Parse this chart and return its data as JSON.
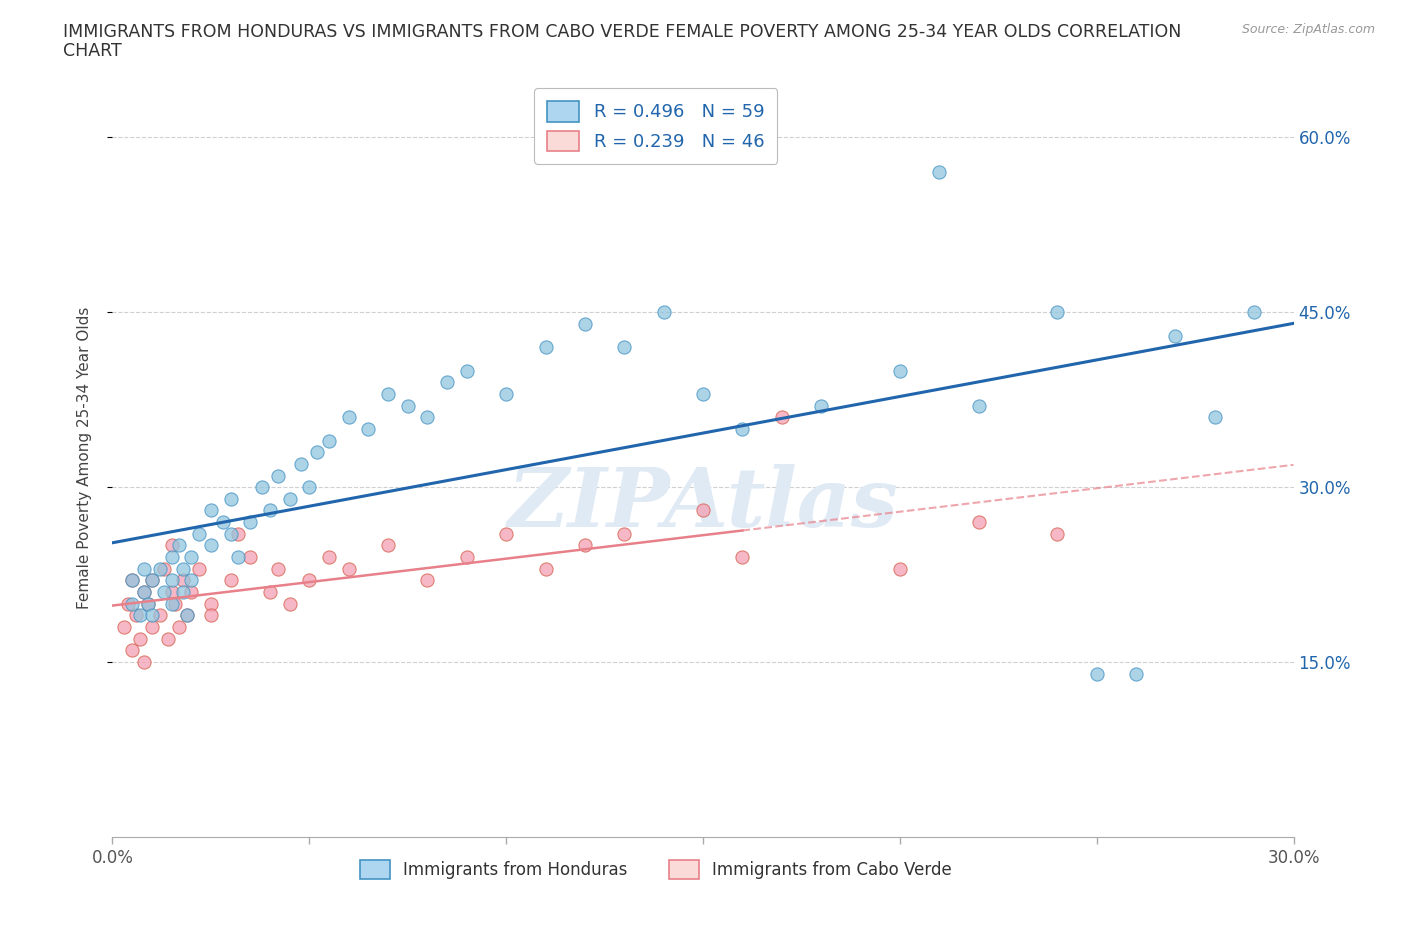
{
  "title_line1": "IMMIGRANTS FROM HONDURAS VS IMMIGRANTS FROM CABO VERDE FEMALE POVERTY AMONG 25-34 YEAR OLDS CORRELATION",
  "title_line2": "CHART",
  "source_text": "Source: ZipAtlas.com",
  "ylabel": "Female Poverty Among 25-34 Year Olds",
  "xlim": [
    0.0,
    0.3
  ],
  "ylim": [
    0.0,
    0.65
  ],
  "yticks": [
    0.15,
    0.3,
    0.45,
    0.6
  ],
  "ytick_labels": [
    "15.0%",
    "30.0%",
    "45.0%",
    "60.0%"
  ],
  "xticks": [
    0.0,
    0.1,
    0.2,
    0.3
  ],
  "xtick_labels": [
    "0.0%",
    "",
    "",
    "30.0%"
  ],
  "watermark": "ZIPAtlas",
  "series1_label": "Immigrants from Honduras",
  "series2_label": "Immigrants from Cabo Verde",
  "series1_color": "#92C5DE",
  "series2_color": "#F4A0B5",
  "series1_edge": "#4393C3",
  "series2_edge": "#D6604D",
  "trend1_color": "#2166AC",
  "trend2_color": "#E8808A",
  "trend2_dash_color": "#E8808A",
  "legend_r1": "R = 0.496   N = 59",
  "legend_r2": "R = 0.239   N = 46",
  "legend_face1": "#AED6F1",
  "legend_face2": "#FADBD8",
  "legend_edge1": "#4393C3",
  "legend_edge2": "#E8808A",
  "legend_text_color": "#2166AC",
  "background_color": "#ffffff",
  "grid_color": "#d0d0d0",
  "honduras_x": [
    0.005,
    0.005,
    0.007,
    0.008,
    0.008,
    0.009,
    0.01,
    0.01,
    0.012,
    0.013,
    0.015,
    0.015,
    0.015,
    0.017,
    0.018,
    0.018,
    0.019,
    0.02,
    0.02,
    0.022,
    0.025,
    0.025,
    0.028,
    0.03,
    0.03,
    0.032,
    0.035,
    0.038,
    0.04,
    0.042,
    0.045,
    0.048,
    0.05,
    0.052,
    0.055,
    0.06,
    0.065,
    0.07,
    0.075,
    0.08,
    0.085,
    0.09,
    0.1,
    0.11,
    0.12,
    0.13,
    0.14,
    0.15,
    0.16,
    0.18,
    0.2,
    0.21,
    0.22,
    0.24,
    0.25,
    0.26,
    0.27,
    0.28,
    0.29
  ],
  "honduras_y": [
    0.2,
    0.22,
    0.19,
    0.21,
    0.23,
    0.2,
    0.22,
    0.19,
    0.23,
    0.21,
    0.24,
    0.22,
    0.2,
    0.25,
    0.23,
    0.21,
    0.19,
    0.24,
    0.22,
    0.26,
    0.28,
    0.25,
    0.27,
    0.26,
    0.29,
    0.24,
    0.27,
    0.3,
    0.28,
    0.31,
    0.29,
    0.32,
    0.3,
    0.33,
    0.34,
    0.36,
    0.35,
    0.38,
    0.37,
    0.36,
    0.39,
    0.4,
    0.38,
    0.42,
    0.44,
    0.42,
    0.45,
    0.38,
    0.35,
    0.37,
    0.4,
    0.57,
    0.37,
    0.45,
    0.14,
    0.14,
    0.43,
    0.36,
    0.45
  ],
  "caboverde_x": [
    0.003,
    0.004,
    0.005,
    0.005,
    0.006,
    0.007,
    0.008,
    0.008,
    0.009,
    0.01,
    0.01,
    0.012,
    0.013,
    0.014,
    0.015,
    0.015,
    0.016,
    0.017,
    0.018,
    0.019,
    0.02,
    0.022,
    0.025,
    0.025,
    0.03,
    0.032,
    0.035,
    0.04,
    0.042,
    0.045,
    0.05,
    0.055,
    0.06,
    0.07,
    0.08,
    0.09,
    0.1,
    0.11,
    0.12,
    0.13,
    0.15,
    0.16,
    0.17,
    0.2,
    0.22,
    0.24
  ],
  "caboverde_y": [
    0.18,
    0.2,
    0.16,
    0.22,
    0.19,
    0.17,
    0.21,
    0.15,
    0.2,
    0.18,
    0.22,
    0.19,
    0.23,
    0.17,
    0.21,
    0.25,
    0.2,
    0.18,
    0.22,
    0.19,
    0.21,
    0.23,
    0.2,
    0.19,
    0.22,
    0.26,
    0.24,
    0.21,
    0.23,
    0.2,
    0.22,
    0.24,
    0.23,
    0.25,
    0.22,
    0.24,
    0.26,
    0.23,
    0.25,
    0.26,
    0.28,
    0.24,
    0.36,
    0.23,
    0.27,
    0.26
  ]
}
